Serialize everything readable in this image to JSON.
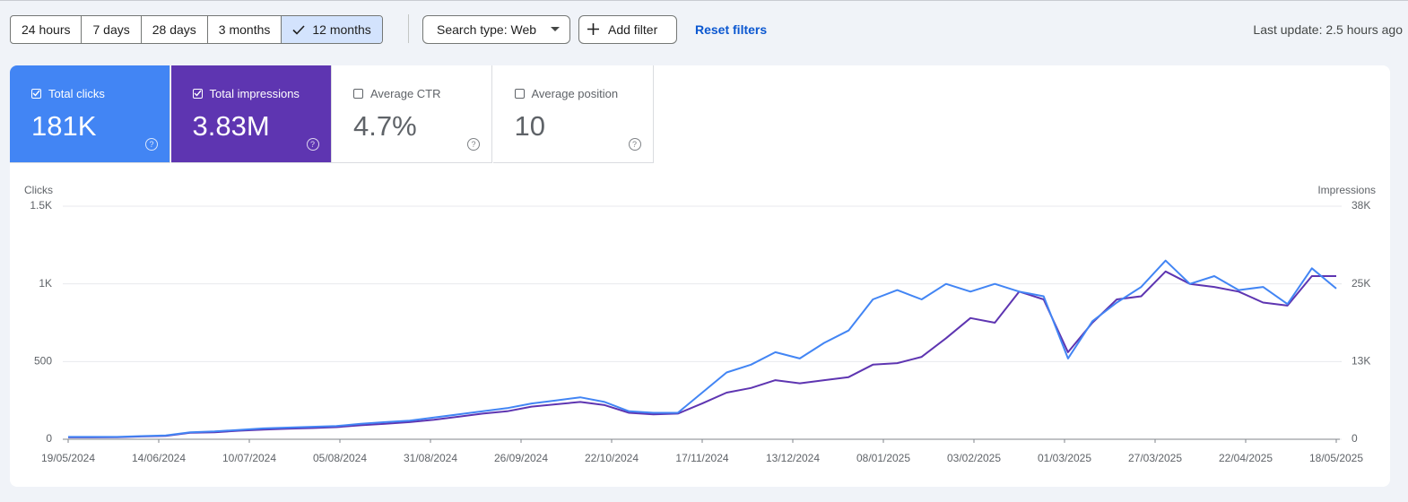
{
  "toolbar": {
    "ranges": [
      "24 hours",
      "7 days",
      "28 days",
      "3 months",
      "12 months"
    ],
    "selected_range": 4,
    "search_type": "Search type: Web",
    "add_filter": "Add filter",
    "reset": "Reset filters",
    "last_update": "Last update: 2.5 hours ago"
  },
  "cards": [
    {
      "label": "Total clicks",
      "value": "181K",
      "checked": true,
      "color": "#4285f4"
    },
    {
      "label": "Total impressions",
      "value": "3.83M",
      "checked": true,
      "color": "#5e35b1"
    },
    {
      "label": "Average CTR",
      "value": "4.7%",
      "checked": false,
      "color": "#ffffff"
    },
    {
      "label": "Average position",
      "value": "10",
      "checked": false,
      "color": "#ffffff"
    }
  ],
  "chart_data": {
    "type": "line",
    "y_label": "Clicks",
    "y2_label": "Impressions",
    "x": [
      "19/05/2024",
      "26/05/2024",
      "02/06/2024",
      "09/06/2024",
      "16/06/2024",
      "23/06/2024",
      "30/06/2024",
      "07/07/2024",
      "14/07/2024",
      "21/07/2024",
      "28/07/2024",
      "04/08/2024",
      "11/08/2024",
      "18/08/2024",
      "25/08/2024",
      "01/09/2024",
      "08/09/2024",
      "15/09/2024",
      "22/09/2024",
      "29/09/2024",
      "06/10/2024",
      "13/10/2024",
      "20/10/2024",
      "27/10/2024",
      "03/11/2024",
      "10/11/2024",
      "17/11/2024",
      "24/11/2024",
      "01/12/2024",
      "08/12/2024",
      "15/12/2024",
      "22/12/2024",
      "29/12/2024",
      "05/01/2025",
      "12/01/2025",
      "19/01/2025",
      "26/01/2025",
      "02/02/2025",
      "09/02/2025",
      "16/02/2025",
      "23/02/2025",
      "02/03/2025",
      "09/03/2025",
      "16/03/2025",
      "23/03/2025",
      "30/03/2025",
      "06/04/2025",
      "13/04/2025",
      "20/04/2025",
      "27/04/2025",
      "04/05/2025",
      "11/05/2025",
      "18/05/2025"
    ],
    "xlim": [
      "19/05/2024",
      "18/05/2025"
    ],
    "xticks": [
      "19/05/2024",
      "14/06/2024",
      "10/07/2024",
      "05/08/2024",
      "31/08/2024",
      "26/09/2024",
      "22/10/2024",
      "17/11/2024",
      "13/12/2024",
      "08/01/2025",
      "03/02/2025",
      "01/03/2025",
      "27/03/2025",
      "22/04/2025",
      "18/05/2025"
    ],
    "ylim": [
      0,
      1500
    ],
    "yticks": [
      0,
      500,
      {
        "value": 1000,
        "label": "1K"
      },
      {
        "value": 1500,
        "label": "1.5K"
      }
    ],
    "y2lim": [
      0,
      37500
    ],
    "y2ticks": [
      0,
      {
        "value": 12500,
        "label": "13K"
      },
      {
        "value": 25000,
        "label": "25K"
      },
      {
        "value": 37500,
        "label": "38K"
      }
    ],
    "grid": true,
    "series": [
      {
        "name": "Total impressions",
        "color": "#5e35b1",
        "axis": "y2",
        "values": [
          300,
          300,
          325,
          450,
          550,
          1050,
          1125,
          1375,
          1550,
          1700,
          1800,
          1950,
          2250,
          2500,
          2750,
          3125,
          3625,
          4125,
          4500,
          5250,
          5625,
          6000,
          5500,
          4250,
          4000,
          4125,
          5750,
          7500,
          8250,
          9500,
          9000,
          9500,
          10000,
          12000,
          12250,
          13250,
          16250,
          19500,
          18750,
          23750,
          22500,
          14000,
          18750,
          22500,
          23000,
          27000,
          25000,
          24500,
          23750,
          22000,
          21500,
          26250,
          26250
        ]
      },
      {
        "name": "Total clicks",
        "color": "#4285f4",
        "values": [
          15,
          15,
          15,
          20,
          25,
          45,
          50,
          60,
          70,
          75,
          80,
          85,
          100,
          110,
          120,
          140,
          160,
          180,
          200,
          230,
          250,
          270,
          240,
          180,
          170,
          170,
          300,
          430,
          480,
          560,
          520,
          620,
          700,
          900,
          960,
          900,
          1000,
          950,
          1000,
          950,
          920,
          520,
          760,
          880,
          980,
          1150,
          1000,
          1050,
          960,
          980,
          870,
          1100,
          970
        ]
      }
    ]
  }
}
